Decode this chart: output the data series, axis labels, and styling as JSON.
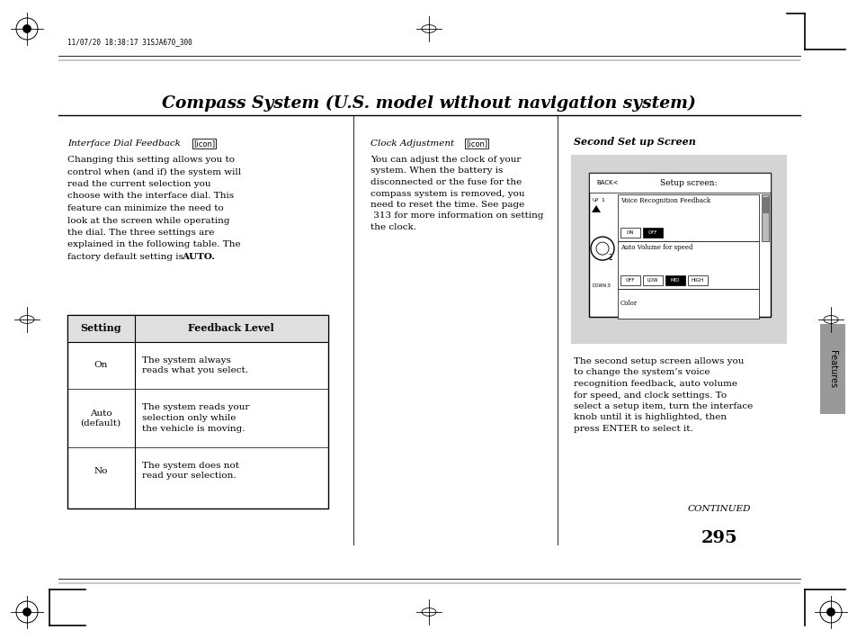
{
  "page_bg": "#ffffff",
  "title": "Compass System (U.S. model without navigation system)",
  "header_stamp_text": "11/07/20 18:38:17 31SJA670_300",
  "page_number": "295",
  "continued_text": "CONTINUED",
  "features_tab_text": "Features",
  "features_tab_color": "#999999",
  "section1_heading": "Interface Dial Feedback",
  "section1_body_lines": [
    "Changing this setting allows you to",
    "control when (and if) the system will",
    "read the current selection you",
    "choose with the interface dial. This",
    "feature can minimize the need to",
    "look at the screen while operating",
    "the dial. The three settings are",
    "explained in the following table. The",
    "factory default setting is "
  ],
  "section1_auto": "AUTO.",
  "section2_heading": "Clock Adjustment",
  "section2_body": "You can adjust the clock of your\nsystem. When the battery is\ndisconnected or the fuse for the\ncompass system is removed, you\nneed to reset the time. See page\n 313 for more information on setting\nthe clock.",
  "section3_heading": "Second Set up Screen",
  "section3_body": "The second setup screen allows you\nto change the system’s voice\nrecognition feedback, auto volume\nfor speed, and clock settings. To\nselect a setup item, turn the interface\nknob until it is highlighted, then\npress ENTER to select it.",
  "table_col1_header": "Setting",
  "table_col2_header": "Feedback Level",
  "table_rows": [
    [
      "On",
      "The system always\nreads what you select."
    ],
    [
      "Auto\n(default)",
      "The system reads your\nselection only while\nthe vehicle is moving."
    ],
    [
      "No",
      "The system does not\nread your selection."
    ]
  ],
  "screen_box_bg": "#d4d4d4",
  "screen_title": "Setup screen:",
  "screen_back_text": "BACK<",
  "screen_row1_label": "Voice Recognition Feedback",
  "screen_row1_btns": [
    "ON",
    "OFF"
  ],
  "screen_row1_selected": 1,
  "screen_row2_label": "Auto Volume for speed",
  "screen_row2_btns": [
    "OFF",
    "LOW",
    "MID",
    "HIGH"
  ],
  "screen_row2_selected": 2,
  "screen_row3_label": "Color"
}
